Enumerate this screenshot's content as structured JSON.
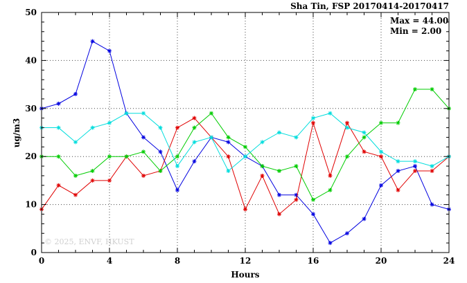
{
  "title": "Sha Tin, FSP 20170414-20170417",
  "annotations": {
    "max": "Max = 44.00",
    "min": "Min = 2.00",
    "watermark": "© 2025, ENVF, HKUST"
  },
  "chart_data": {
    "type": "line",
    "title": "Sha Tin, FSP 20170414-20170417",
    "xlabel": "Hours",
    "ylabel": "ug/m3",
    "xlim": [
      0,
      24
    ],
    "ylim": [
      0,
      50
    ],
    "xticks": [
      0,
      4,
      8,
      12,
      16,
      20,
      24
    ],
    "yticks": [
      0,
      10,
      20,
      30,
      40,
      50
    ],
    "grid": true,
    "x": [
      0,
      1,
      2,
      3,
      4,
      5,
      6,
      7,
      8,
      9,
      10,
      11,
      12,
      13,
      14,
      15,
      16,
      17,
      18,
      19,
      20,
      21,
      22,
      23,
      24
    ],
    "series": [
      {
        "name": "blue",
        "color": "#0000e0",
        "values": [
          30,
          31,
          33,
          44,
          42,
          29,
          24,
          21,
          13,
          19,
          24,
          23,
          20,
          18,
          12,
          12,
          8,
          2,
          4,
          7,
          14,
          17,
          18,
          10,
          9
        ]
      },
      {
        "name": "red",
        "color": "#e00000",
        "values": [
          9,
          14,
          12,
          15,
          15,
          20,
          16,
          17,
          26,
          28,
          24,
          20,
          9,
          16,
          8,
          11,
          27,
          16,
          27,
          21,
          20,
          13,
          17,
          17,
          20
        ]
      },
      {
        "name": "green",
        "color": "#00cc00",
        "values": [
          20,
          20,
          16,
          17,
          20,
          20,
          21,
          17,
          20,
          26,
          29,
          24,
          22,
          18,
          17,
          18,
          11,
          13,
          20,
          24,
          27,
          27,
          34,
          34,
          30
        ]
      },
      {
        "name": "cyan",
        "color": "#00dddd",
        "values": [
          26,
          26,
          23,
          26,
          27,
          29,
          29,
          26,
          18,
          23,
          24,
          17,
          20,
          23,
          25,
          24,
          28,
          29,
          26,
          25,
          21,
          19,
          19,
          18,
          20
        ]
      }
    ]
  }
}
